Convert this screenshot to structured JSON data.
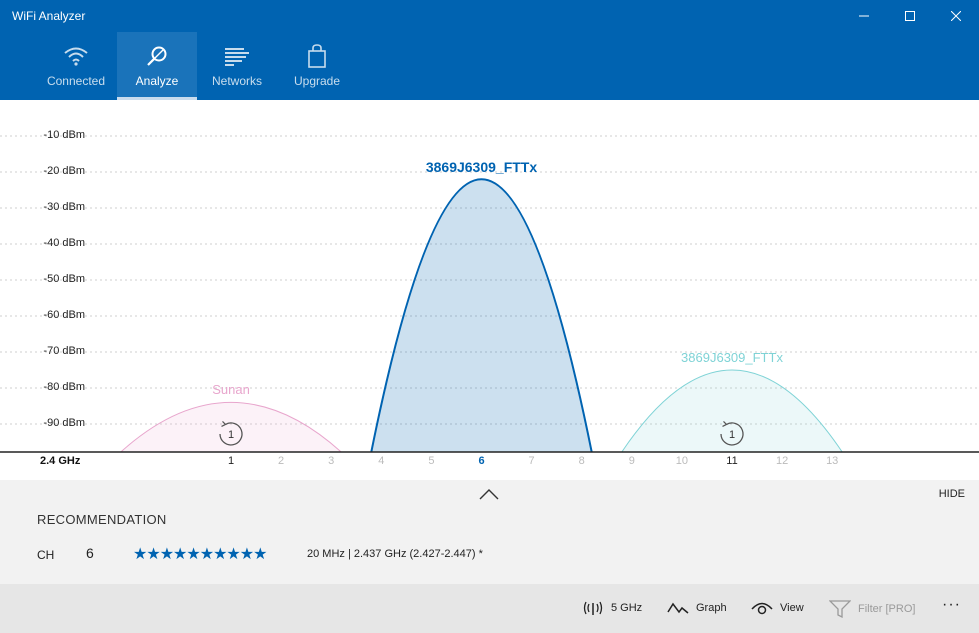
{
  "window": {
    "title": "WiFi Analyzer",
    "controls": [
      "minimize-icon",
      "maximize-icon",
      "close-icon"
    ]
  },
  "nav": {
    "items": [
      {
        "label": "Connected",
        "icon": "wifi-icon",
        "active": false
      },
      {
        "label": "Analyze",
        "icon": "magnifier-icon",
        "active": true
      },
      {
        "label": "Networks",
        "icon": "networks-list-icon",
        "active": false
      },
      {
        "label": "Upgrade",
        "icon": "shopping-bag-icon",
        "active": false
      }
    ]
  },
  "chart": {
    "band": "2.4 GHz",
    "y_labels": [
      "-10 dBm",
      "-20 dBm",
      "-30 dBm",
      "-40 dBm",
      "-50 dBm",
      "-60 dBm",
      "-70 dBm",
      "-80 dBm",
      "-90 dBm"
    ],
    "channels": [
      "1",
      "2",
      "3",
      "4",
      "5",
      "6",
      "7",
      "8",
      "9",
      "10",
      "11",
      "12",
      "13"
    ],
    "networks": [
      {
        "ssid": "Sunan",
        "channel": 1,
        "strength_dbm": -84,
        "color": "#e8a6cd",
        "count_badge": "1"
      },
      {
        "ssid": "3869J6309_FTTx",
        "channel": 6,
        "strength_dbm": -22,
        "color": "#0063b1",
        "selected": true
      },
      {
        "ssid": "3869J6309_FTTx",
        "channel": 11,
        "strength_dbm": -75,
        "color": "#7fd3d6",
        "count_badge": "1"
      }
    ]
  },
  "recommendation": {
    "title": "RECOMMENDATION",
    "hide_label": "HIDE",
    "ch_key": "CH",
    "channel": "6",
    "stars": "★★★★★★★★★★",
    "star_rating": 10,
    "info": "20 MHz | 2.437 GHz  (2.427-2.447) *"
  },
  "commands": {
    "band": {
      "label": "5 GHz",
      "icon": "antenna-icon"
    },
    "graph": {
      "label": "Graph",
      "icon": "graph-icon"
    },
    "view": {
      "label": "View",
      "icon": "eye-icon"
    },
    "filter": {
      "label": "Filter [PRO]",
      "icon": "filter-icon"
    },
    "more": {
      "label": "···",
      "icon": "more-icon"
    }
  }
}
